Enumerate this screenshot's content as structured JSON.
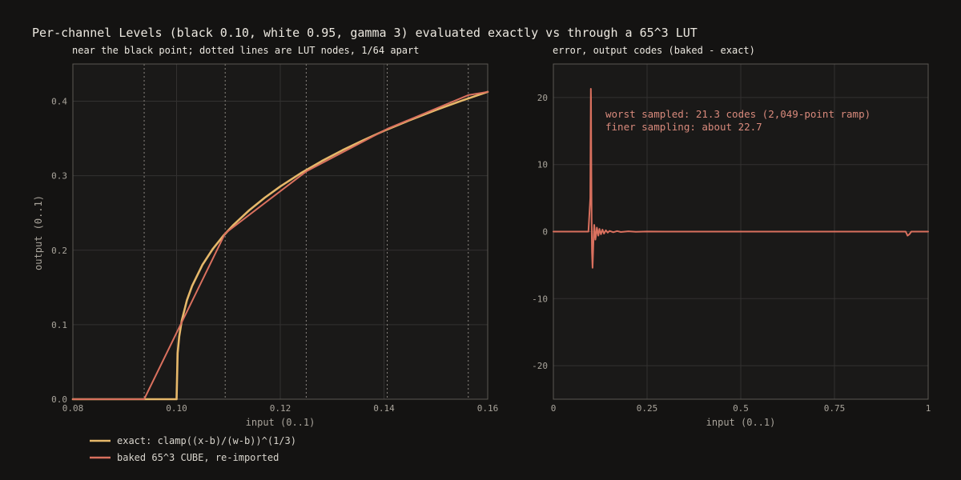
{
  "title": "Per-channel Levels (black 0.10, white 0.95, gamma 3) evaluated exactly vs through a 65^3 LUT",
  "colors": {
    "background": "#141312",
    "plot_bg": "#1a1918",
    "grid": "#333130",
    "frame": "#5b5853",
    "exact": "#e6b86a",
    "baked": "#d9705e",
    "node": "#8a8680"
  },
  "chart_data": [
    {
      "type": "line",
      "subtitle": "near the black point; dotted lines are LUT nodes, 1/64 apart",
      "xlabel": "input (0..1)",
      "ylabel": "output (0..1)",
      "xlim": [
        0.08,
        0.16
      ],
      "ylim": [
        0,
        0.45
      ],
      "xticks": [
        "0.08",
        "0.10",
        "0.12",
        "0.14",
        "0.16"
      ],
      "yticks": [
        "0.0",
        "0.1",
        "0.2",
        "0.3",
        "0.4"
      ],
      "grid": true,
      "lut_nodes": [
        0.09375,
        0.109375,
        0.125,
        0.140625,
        0.15625
      ],
      "legend_position": "below",
      "series": [
        {
          "name": "exact: clamp((x-b)/(w-b))^(1/3)",
          "x": [
            0.08,
            0.1,
            0.1002,
            0.1005,
            0.101,
            0.102,
            0.103,
            0.105,
            0.107,
            0.109,
            0.111,
            0.114,
            0.117,
            0.12,
            0.124,
            0.128,
            0.132,
            0.136,
            0.14,
            0.145,
            0.15,
            0.155,
            0.16
          ],
          "y": [
            0,
            0,
            0.0617,
            0.0838,
            0.1056,
            0.133,
            0.1522,
            0.1806,
            0.2019,
            0.2193,
            0.2342,
            0.2536,
            0.2705,
            0.2856,
            0.3036,
            0.3197,
            0.3343,
            0.3477,
            0.3602,
            0.3747,
            0.3882,
            0.4008,
            0.4126
          ]
        },
        {
          "name": "baked 65^3 CUBE, re-imported",
          "x": [
            0.08,
            0.09375,
            0.109375,
            0.125,
            0.140625,
            0.15625,
            0.16
          ],
          "y": [
            0,
            0,
            0.2228,
            0.3058,
            0.3629,
            0.4082,
            0.4126
          ]
        }
      ]
    },
    {
      "type": "line",
      "subtitle": "error, output codes (baked - exact)",
      "xlabel": "input (0..1)",
      "xlim": [
        0,
        1
      ],
      "ylim": [
        -25,
        25
      ],
      "xticks": [
        "0",
        "0.25",
        "0.5",
        "0.75",
        "1"
      ],
      "yticks": [
        "20",
        "10",
        "0",
        "-10",
        "-20"
      ],
      "grid": true,
      "annotations": [
        "worst sampled: 21.3 codes (2,049-point ramp)",
        "finer sampling: about 22.7"
      ],
      "series": [
        {
          "name": "baked - exact",
          "x": [
            0,
            0.0935,
            0.094,
            0.0985,
            0.099,
            0.0997,
            0.1,
            0.1004,
            0.101,
            0.102,
            0.103,
            0.1045,
            0.106,
            0.1075,
            0.109,
            0.11,
            0.112,
            0.114,
            0.116,
            0.12,
            0.123,
            0.127,
            0.131,
            0.135,
            0.14,
            0.145,
            0.15,
            0.16,
            0.17,
            0.18,
            0.2,
            0.22,
            0.25,
            0.3,
            0.5,
            0.94,
            0.945,
            0.95,
            0.955,
            1
          ],
          "y": [
            0,
            0,
            0.5,
            5,
            10,
            18,
            21.3,
            20,
            12,
            2,
            -3,
            -5.4,
            -3,
            -0.5,
            1,
            0.4,
            -1.2,
            -0.5,
            0.6,
            -0.6,
            0.4,
            -0.4,
            0.3,
            -0.3,
            0.2,
            -0.15,
            0.1,
            -0.1,
            0.08,
            -0.06,
            0.04,
            -0.03,
            0.02,
            0,
            0,
            0,
            -0.6,
            -0.4,
            0,
            0
          ]
        }
      ]
    }
  ]
}
